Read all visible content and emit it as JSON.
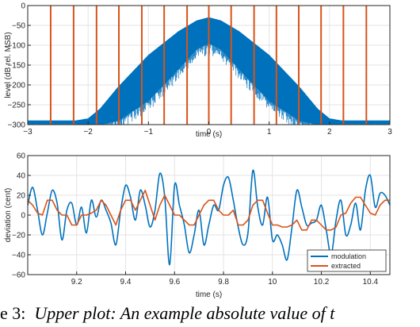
{
  "colors": {
    "modulation": "#0072BD",
    "extracted": "#D95319",
    "markers": "#D95319",
    "grid": "#e3e3e3",
    "axis": "#262626"
  },
  "chart_data": [
    {
      "type": "line",
      "xlabel": "time (s)",
      "ylabel": "level (dB rel. MSB)",
      "xlim": [
        -3,
        3
      ],
      "ylim": [
        -300,
        0
      ],
      "x_ticks": [
        -3,
        -2,
        -1,
        0,
        1,
        2,
        3
      ],
      "y_ticks": [
        0,
        -50,
        -100,
        -150,
        -200,
        -250,
        -300
      ],
      "x_tick_labels": [
        "−3",
        "−2",
        "−1",
        "0",
        "1",
        "2",
        "3"
      ],
      "y_tick_labels": [
        "0",
        "−50",
        "−100",
        "−150",
        "−200",
        "−250",
        "−300"
      ],
      "grid": true,
      "series": [
        {
          "color": "#0072BD",
          "envelope_upper": {
            "x": [
              -3,
              -2.2,
              -2.0,
              -1.8,
              -1.5,
              -1.0,
              -0.5,
              -0.2,
              0,
              0.2,
              0.5,
              1.0,
              1.5,
              1.8,
              2.0,
              2.2,
              3
            ],
            "y": [
              -290,
              -290,
              -285,
              -260,
              -205,
              -125,
              -65,
              -38,
              -30,
              -38,
              -65,
              -125,
              -205,
              -260,
              -285,
              -290,
              -290
            ]
          },
          "envelope_lower": {
            "x": [
              -3,
              -2.2,
              -2.0,
              -1.8,
              -1.5,
              -1.0,
              -0.5,
              -0.2,
              0,
              0.2,
              0.5,
              1.0,
              1.5,
              1.8,
              2.0,
              2.2,
              3
            ],
            "y": [
              -298,
              -298,
              -300,
              -300,
              -290,
              -240,
              -160,
              -110,
              -95,
              -110,
              -160,
              -240,
              -290,
              -300,
              -300,
              -298,
              -298
            ]
          }
        },
        {
          "color": "#D95319",
          "vertical_markers_x": [
            -2.62,
            -2.24,
            -1.86,
            -1.49,
            -1.11,
            -0.74,
            -0.36,
            0.0,
            0.37,
            0.75,
            1.12,
            1.49,
            1.86,
            2.23,
            2.61
          ]
        }
      ]
    },
    {
      "type": "line",
      "xlabel": "time (s)",
      "ylabel": "deviation (cent)",
      "xlim": [
        9.0,
        10.48
      ],
      "ylim": [
        -60,
        60
      ],
      "x_ticks": [
        9.2,
        9.4,
        9.6,
        9.8,
        10.0,
        10.2,
        10.4
      ],
      "y_ticks": [
        60,
        40,
        20,
        0,
        -20,
        -40,
        -60
      ],
      "x_tick_labels": [
        "9.2",
        "9.4",
        "9.6",
        "9.8",
        "10",
        "10.2",
        "10.4"
      ],
      "y_tick_labels": [
        "60",
        "40",
        "20",
        "0",
        "−20",
        "−40",
        "−60"
      ],
      "grid": true,
      "legend_position": "bottom-right",
      "series": [
        {
          "name": "modulation",
          "color": "#0072BD",
          "x": [
            9.0,
            9.02,
            9.04,
            9.06,
            9.08,
            9.1,
            9.12,
            9.14,
            9.16,
            9.18,
            9.2,
            9.22,
            9.24,
            9.26,
            9.28,
            9.3,
            9.32,
            9.34,
            9.36,
            9.38,
            9.4,
            9.42,
            9.44,
            9.46,
            9.48,
            9.5,
            9.52,
            9.54,
            9.56,
            9.58,
            9.6,
            9.62,
            9.64,
            9.66,
            9.68,
            9.7,
            9.72,
            9.74,
            9.76,
            9.78,
            9.8,
            9.82,
            9.84,
            9.86,
            9.88,
            9.9,
            9.92,
            9.94,
            9.96,
            9.98,
            10.0,
            10.02,
            10.04,
            10.06,
            10.08,
            10.1,
            10.12,
            10.14,
            10.16,
            10.18,
            10.2,
            10.22,
            10.24,
            10.26,
            10.28,
            10.3,
            10.32,
            10.34,
            10.36,
            10.38,
            10.4,
            10.42,
            10.44,
            10.46,
            10.48
          ],
          "y": [
            10,
            28,
            5,
            -20,
            2,
            25,
            12,
            -25,
            5,
            12,
            -10,
            8,
            -18,
            15,
            -2,
            15,
            5,
            -8,
            -30,
            5,
            30,
            18,
            -5,
            25,
            10,
            -12,
            5,
            42,
            18,
            -50,
            30,
            10,
            -10,
            -38,
            -20,
            5,
            -30,
            -10,
            10,
            5,
            30,
            38,
            15,
            -12,
            -30,
            -18,
            45,
            8,
            -10,
            18,
            -25,
            -20,
            -30,
            -45,
            -12,
            25,
            8,
            -10,
            -8,
            -5,
            10,
            -15,
            -40,
            -5,
            15,
            -20,
            -10,
            12,
            -15,
            25,
            40,
            8,
            22,
            20,
            10
          ]
        },
        {
          "name": "extracted",
          "color": "#D95319",
          "x": [
            9.0,
            9.02,
            9.04,
            9.06,
            9.08,
            9.1,
            9.12,
            9.14,
            9.16,
            9.18,
            9.2,
            9.22,
            9.24,
            9.26,
            9.28,
            9.3,
            9.32,
            9.34,
            9.36,
            9.38,
            9.4,
            9.42,
            9.44,
            9.46,
            9.48,
            9.5,
            9.52,
            9.54,
            9.56,
            9.58,
            9.6,
            9.62,
            9.64,
            9.66,
            9.68,
            9.7,
            9.72,
            9.74,
            9.76,
            9.78,
            9.8,
            9.82,
            9.84,
            9.86,
            9.88,
            9.9,
            9.92,
            9.94,
            9.96,
            9.98,
            10.0,
            10.02,
            10.04,
            10.06,
            10.08,
            10.1,
            10.12,
            10.14,
            10.16,
            10.18,
            10.2,
            10.22,
            10.24,
            10.26,
            10.28,
            10.3,
            10.32,
            10.34,
            10.36,
            10.38,
            10.4,
            10.42,
            10.44,
            10.46,
            10.48
          ],
          "y": [
            15,
            10,
            2,
            0,
            15,
            15,
            5,
            0,
            0,
            -10,
            -10,
            0,
            0,
            2,
            5,
            15,
            10,
            0,
            -10,
            5,
            15,
            15,
            5,
            15,
            25,
            10,
            -5,
            10,
            20,
            10,
            0,
            0,
            -5,
            -10,
            -10,
            0,
            10,
            15,
            15,
            5,
            0,
            0,
            5,
            -10,
            -10,
            -5,
            10,
            15,
            15,
            2,
            -10,
            -10,
            -12,
            -12,
            -10,
            -5,
            -15,
            -15,
            -5,
            -5,
            -10,
            -15,
            -15,
            -12,
            0,
            2,
            12,
            18,
            18,
            10,
            2,
            0,
            10,
            15,
            15
          ]
        }
      ]
    }
  ],
  "caption": {
    "prefix": "e 3:",
    "italic": "Upper plot: An example absolute value of t"
  }
}
